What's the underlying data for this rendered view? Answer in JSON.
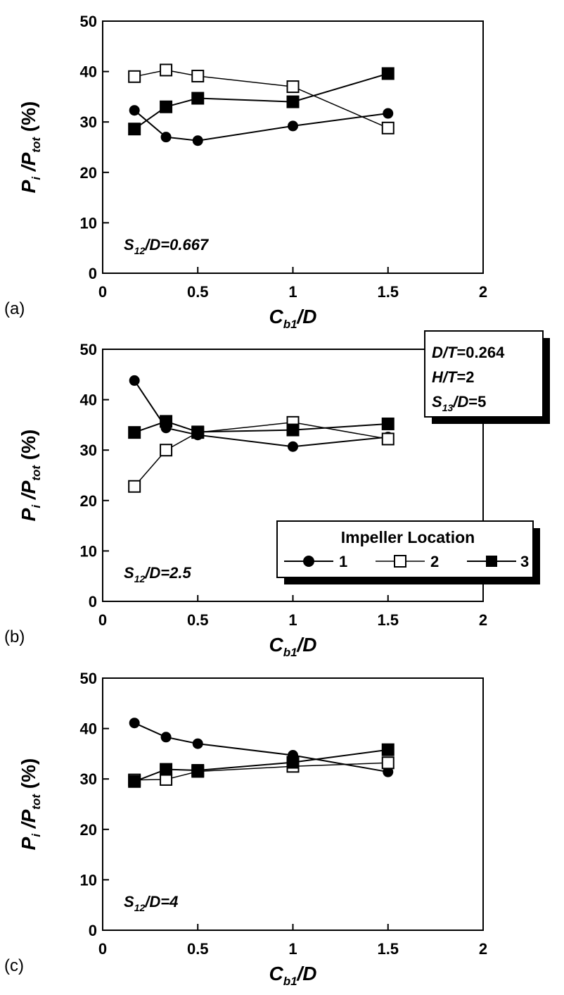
{
  "chart_data": [
    {
      "type": "line",
      "panel_label": "(a)",
      "annotation": {
        "main": "S",
        "sub": "12",
        "rest": "/D=0.667"
      },
      "xlabel": {
        "main": "C",
        "sub": "b1",
        "rest": "/D"
      },
      "ylabel": {
        "p1": "P",
        "s1": "i",
        "mid": " /P",
        "s2": "tot",
        "p2": " (%)"
      },
      "xlim": [
        0,
        2
      ],
      "ylim": [
        0,
        50
      ],
      "xticks": [
        "0",
        "0.5",
        "1",
        "1.5",
        "2"
      ],
      "yticks": [
        "0",
        "10",
        "20",
        "30",
        "40",
        "50"
      ],
      "x": [
        0.167,
        0.333,
        0.5,
        1.0,
        1.5
      ],
      "series": [
        {
          "name": "1",
          "marker": "circle-filled",
          "values": [
            32.3,
            27.0,
            26.3,
            29.2,
            31.7
          ]
        },
        {
          "name": "2",
          "marker": "square-open",
          "values": [
            39.0,
            40.3,
            39.1,
            37.0,
            28.8
          ]
        },
        {
          "name": "3",
          "marker": "square-filled",
          "values": [
            28.6,
            33.0,
            34.7,
            34.0,
            39.6
          ]
        }
      ]
    },
    {
      "type": "line",
      "panel_label": "(b)",
      "annotation": {
        "main": "S",
        "sub": "12",
        "rest": "/D=2.5"
      },
      "xlabel": {
        "main": "C",
        "sub": "b1",
        "rest": "/D"
      },
      "ylabel": {
        "p1": "P",
        "s1": "i",
        "mid": " /P",
        "s2": "tot",
        "p2": " (%)"
      },
      "xlim": [
        0,
        2
      ],
      "ylim": [
        0,
        50
      ],
      "xticks": [
        "0",
        "0.5",
        "1",
        "1.5",
        "2"
      ],
      "yticks": [
        "0",
        "10",
        "20",
        "30",
        "40",
        "50"
      ],
      "x": [
        0.167,
        0.333,
        0.5,
        1.0,
        1.5
      ],
      "series": [
        {
          "name": "1",
          "marker": "circle-filled",
          "values": [
            43.8,
            34.4,
            33.0,
            30.7,
            32.6
          ]
        },
        {
          "name": "2",
          "marker": "square-open",
          "values": [
            22.8,
            30.0,
            33.5,
            35.5,
            32.2
          ]
        },
        {
          "name": "3",
          "marker": "square-filled",
          "values": [
            33.5,
            35.7,
            33.6,
            34.0,
            35.2
          ]
        }
      ]
    },
    {
      "type": "line",
      "panel_label": "(c)",
      "annotation": {
        "main": "S",
        "sub": "12",
        "rest": "/D=4"
      },
      "xlabel": {
        "main": "C",
        "sub": "b1",
        "rest": "/D"
      },
      "ylabel": {
        "p1": "P",
        "s1": "i",
        "mid": " /P",
        "s2": "tot",
        "p2": " (%)"
      },
      "xlim": [
        0,
        2
      ],
      "ylim": [
        0,
        50
      ],
      "xticks": [
        "0",
        "0.5",
        "1",
        "1.5",
        "2"
      ],
      "yticks": [
        "0",
        "10",
        "20",
        "30",
        "40",
        "50"
      ],
      "x": [
        0.167,
        0.333,
        0.5,
        1.0,
        1.5
      ],
      "series": [
        {
          "name": "1",
          "marker": "circle-filled",
          "values": [
            41.1,
            38.3,
            37.0,
            34.7,
            31.4
          ]
        },
        {
          "name": "2",
          "marker": "square-open",
          "values": [
            29.8,
            29.9,
            31.5,
            32.5,
            33.2
          ]
        },
        {
          "name": "3",
          "marker": "square-filled",
          "values": [
            29.5,
            31.9,
            31.7,
            33.3,
            35.8
          ]
        }
      ]
    }
  ],
  "conditions_box": {
    "line1": {
      "main": "D/T",
      "rest": "=0.264"
    },
    "line2": {
      "main": "H/T",
      "rest": "=2"
    },
    "line3": {
      "main": "S",
      "sub": "13",
      "mid": "/D",
      "rest": "=5"
    }
  },
  "legend": {
    "title": "Impeller Location",
    "items": [
      "1",
      "2",
      "3"
    ]
  }
}
